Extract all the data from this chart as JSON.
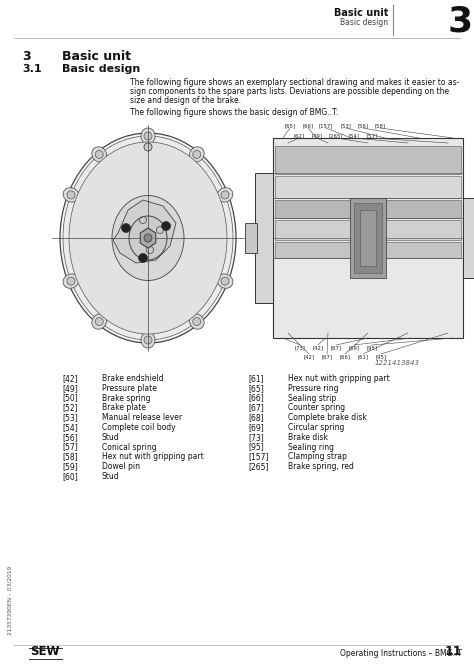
{
  "page_bg": "#ffffff",
  "header_chapter": "Basic unit",
  "header_section": "Basic design",
  "header_num": "3",
  "chapter_num": "3",
  "chapter_title": "Basic unit",
  "section_num": "3.1",
  "section_title": "Basic design",
  "body_text1_l1": "The following figure shows an exemplary sectional drawing and makes it easier to as-",
  "body_text1_l2": "sign components to the spare parts lists. Deviations are possible depending on the",
  "body_text1_l3": "size and design of the brake.",
  "body_text2": "The following figure shows the basic design of BMG..T:",
  "figure_id": "1221413843",
  "left_col": [
    [
      "[42]",
      "Brake endshield"
    ],
    [
      "[49]",
      "Pressure plate"
    ],
    [
      "[50]",
      "Brake spring"
    ],
    [
      "[52]",
      "Brake plate"
    ],
    [
      "[53]",
      "Manual release lever"
    ],
    [
      "[54]",
      "Complete coil body"
    ],
    [
      "[56]",
      "Stud"
    ],
    [
      "[57]",
      "Conical spring"
    ],
    [
      "[58]",
      "Hex nut with gripping part"
    ],
    [
      "[59]",
      "Dowel pin"
    ],
    [
      "[60]",
      "Stud"
    ]
  ],
  "right_col": [
    [
      "[61]",
      "Hex nut with gripping part"
    ],
    [
      "[65]",
      "Pressure ring"
    ],
    [
      "[66]",
      "Sealing strip"
    ],
    [
      "[67]",
      "Counter spring"
    ],
    [
      "[68]",
      "Complete brake disk"
    ],
    [
      "[69]",
      "Circular spring"
    ],
    [
      "[73]",
      "Brake disk"
    ],
    [
      "[95]",
      "Sealing ring"
    ],
    [
      "[157]",
      "Clamping strap"
    ],
    [
      "[265]",
      "Brake spring, red"
    ]
  ],
  "footer_doc": "21357390EN – 03/2019",
  "footer_right_text": "Operating Instructions – BMG..T",
  "footer_page": "11",
  "top_anno_outer": [
    "[65]",
    "[66]",
    "[157]",
    "[53]",
    "[56]",
    "[58]"
  ],
  "top_anno_inner": [
    "[62]",
    "[49]",
    "[265]",
    "[54]",
    "[57]"
  ],
  "bot_anno_outer": [
    "[73]",
    "[42]",
    "[67]",
    "[69]",
    "[95]"
  ],
  "bot_anno_inner": [
    "[42]",
    "[67]",
    "[66]",
    "[61]",
    "[95]"
  ]
}
